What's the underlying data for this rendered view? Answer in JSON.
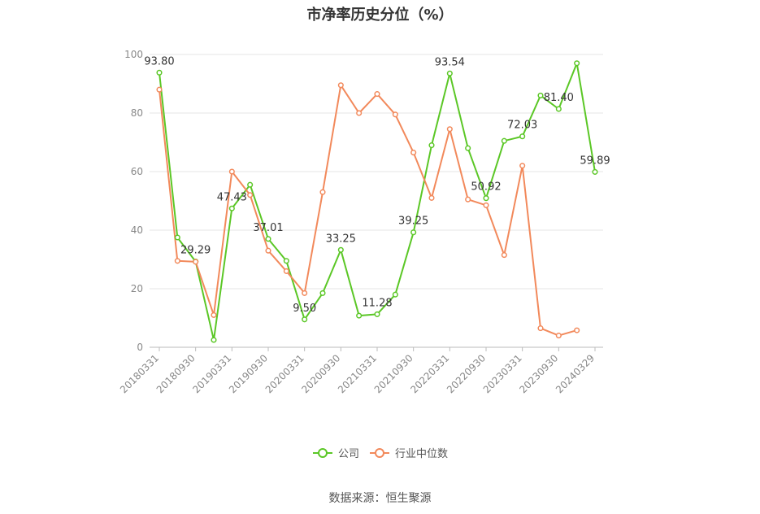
{
  "chart_data": {
    "type": "line",
    "title": "市净率历史分位（%）",
    "source": "数据来源：恒生聚源",
    "ylim": [
      0,
      100
    ],
    "y_ticks": [
      "0",
      "20",
      "40",
      "60",
      "80",
      "100"
    ],
    "x_tick_labels": [
      "20180331",
      "20180930",
      "20190331",
      "20190930",
      "20200331",
      "20200930",
      "20210331",
      "20210930",
      "20220331",
      "20220930",
      "20230331",
      "20230930",
      "20240329"
    ],
    "x": [
      "20180331",
      "20180630",
      "20180930",
      "20181231",
      "20190331",
      "20190630",
      "20190930",
      "20191231",
      "20200331",
      "20200630",
      "20200930",
      "20201231",
      "20210331",
      "20210630",
      "20210930",
      "20211231",
      "20220331",
      "20220630",
      "20220930",
      "20221231",
      "20230331",
      "20230630",
      "20230930",
      "20231231",
      "20240329"
    ],
    "grid": true,
    "legend": "bottom-center",
    "series": [
      {
        "name": "公司",
        "color": "#5bc726",
        "values": [
          93.8,
          37.5,
          29.29,
          2.5,
          47.43,
          55.5,
          37.01,
          29.5,
          9.5,
          18.5,
          33.25,
          10.8,
          11.28,
          18.0,
          39.25,
          69.0,
          93.54,
          68.0,
          50.92,
          70.5,
          72.03,
          86.0,
          81.4,
          97.0,
          59.89
        ],
        "labels": {
          "0": "93.80",
          "2": "29.29",
          "4": "47.43",
          "6": "37.01",
          "8": "9.50",
          "10": "33.25",
          "12": "11.28",
          "14": "39.25",
          "16": "93.54",
          "18": "50.92",
          "20": "72.03",
          "22": "81.40",
          "24": "59.89"
        }
      },
      {
        "name": "行业中位数",
        "color": "#f2895b",
        "values": [
          88.0,
          29.5,
          29.2,
          11.0,
          60.0,
          52.0,
          33.0,
          26.0,
          18.5,
          53.0,
          89.5,
          80.0,
          86.5,
          79.5,
          66.5,
          51.0,
          74.5,
          50.5,
          48.5,
          31.5,
          62.0,
          6.5,
          4.0,
          5.8,
          null
        ]
      }
    ]
  }
}
